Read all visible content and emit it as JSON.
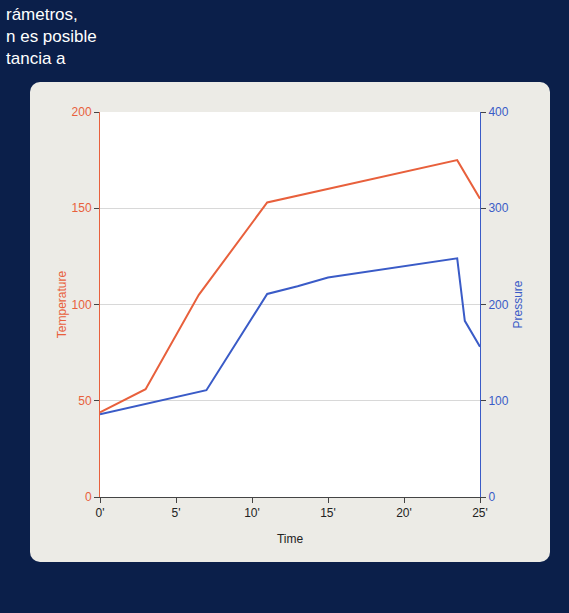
{
  "chart_data": {
    "type": "line",
    "annotations": [
      "rámetros,",
      "n es posible",
      "tancia a"
    ],
    "xlabel": "Time",
    "ylabel": "Temperature",
    "y2label": "Pressure",
    "series": [
      {
        "name": "Temperature",
        "color": "#e8603c",
        "axis": "y",
        "x": [
          0,
          3,
          6.5,
          11,
          23.5,
          25
        ],
        "values": [
          44,
          56,
          105,
          153,
          175,
          155
        ]
      },
      {
        "name": "Pressure",
        "color": "#3a5bc7",
        "axis": "y2",
        "x": [
          0,
          4,
          7,
          11,
          13,
          15,
          23.5,
          24,
          25
        ],
        "values": [
          86,
          100,
          111,
          211,
          219,
          228,
          248,
          183,
          156
        ]
      }
    ],
    "xlim": [
      0,
      25
    ],
    "xticks": [
      {
        "value": 0,
        "label": "0'"
      },
      {
        "value": 5,
        "label": "5'"
      },
      {
        "value": 10,
        "label": "10'"
      },
      {
        "value": 15,
        "label": "15'"
      },
      {
        "value": 20,
        "label": "20'"
      },
      {
        "value": 25,
        "label": "25'"
      }
    ],
    "ylim": [
      0,
      200
    ],
    "yticks": [
      0,
      50,
      100,
      150,
      200
    ],
    "y2lim": [
      0,
      400
    ],
    "y2ticks": [
      0,
      100,
      200,
      300,
      400
    ],
    "grid": true
  }
}
